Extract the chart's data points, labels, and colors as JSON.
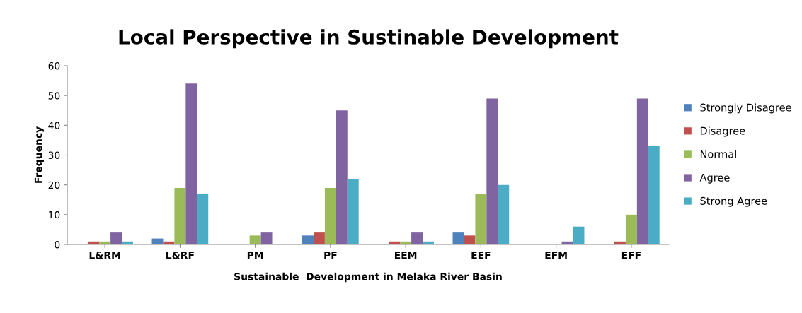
{
  "chart_data": {
    "type": "bar",
    "title": "Local Perspective in Sustinable Development",
    "xlabel": "Sustainable  Development in Melaka River Basin",
    "ylabel": "Frequency",
    "categories": [
      "L&RM",
      "L&RF",
      "PM",
      "PF",
      "EEM",
      "EEF",
      "EFM",
      "EFF"
    ],
    "series": [
      {
        "name": "Strongly Disagree",
        "color": "#4f81bd",
        "values": [
          0,
          2,
          0,
          3,
          0,
          4,
          0,
          0
        ]
      },
      {
        "name": "Disagree",
        "color": "#c0504d",
        "values": [
          1,
          1,
          0,
          4,
          1,
          3,
          0,
          1
        ]
      },
      {
        "name": "Normal",
        "color": "#9bbb59",
        "values": [
          1,
          19,
          3,
          19,
          1,
          17,
          0,
          10
        ]
      },
      {
        "name": "Agree",
        "color": "#8064a2",
        "values": [
          4,
          54,
          4,
          45,
          4,
          49,
          1,
          49
        ]
      },
      {
        "name": "Strong Agree",
        "color": "#4bacc6",
        "values": [
          1,
          17,
          0,
          22,
          1,
          20,
          6,
          33
        ]
      }
    ],
    "ylim": [
      0,
      60
    ],
    "yticks": [
      0,
      10,
      20,
      30,
      40,
      50,
      60
    ],
    "grid": false,
    "legend": "right"
  }
}
